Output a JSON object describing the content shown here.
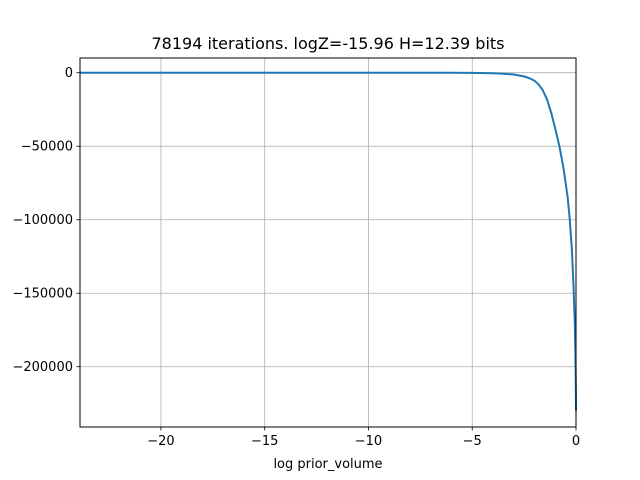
{
  "chart_data": {
    "type": "line",
    "title": "78194 iterations. logZ=-15.96 H=12.39 bits",
    "xlabel": "log prior_volume",
    "ylabel": "",
    "xlim": [
      -23.9,
      0
    ],
    "ylim": [
      -241000,
      10000
    ],
    "grid": true,
    "xticks": [
      -20,
      -15,
      -10,
      -5,
      0
    ],
    "xtick_labels": [
      "−20",
      "−15",
      "−10",
      "−5",
      "0"
    ],
    "yticks": [
      0,
      -50000,
      -100000,
      -150000,
      -200000
    ],
    "ytick_labels": [
      "0",
      "−50000",
      "−100000",
      "−150000",
      "−200000"
    ],
    "series": [
      {
        "color": "#1f77b4",
        "x": [
          -23.9,
          -20,
          -15,
          -10,
          -6,
          -5,
          -4,
          -3.5,
          -3,
          -2.5,
          -2.2,
          -2.0,
          -1.8,
          -1.6,
          -1.4,
          -1.2,
          -1.0,
          -0.8,
          -0.6,
          -0.4,
          -0.3,
          -0.2,
          -0.12,
          -0.06,
          -0.03,
          -0.01,
          0
        ],
        "y": [
          0,
          0,
          0,
          0,
          -50,
          -150,
          -400,
          -700,
          -1200,
          -2500,
          -4000,
          -5500,
          -8000,
          -12000,
          -18000,
          -27000,
          -38000,
          -50000,
          -65000,
          -85000,
          -100000,
          -120000,
          -145000,
          -170000,
          -190000,
          -210000,
          -230000
        ]
      }
    ]
  }
}
